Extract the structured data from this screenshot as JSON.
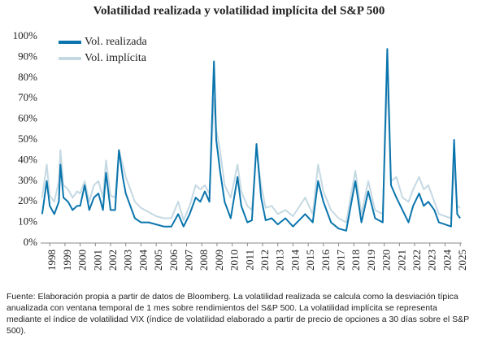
{
  "chart_data": {
    "type": "line",
    "title": "Volatilidad realizada y volatilidad implícita del S&P 500",
    "note": "Fuente: Elaboración propia a partir de datos de Bloomberg. La volatilidad realizada se calcula como la desviación típica anualizada con ventana temporal de 1 mes sobre rendimientos del S&P 500. La volatilidad implícita se representa mediante el índice de volatilidad VIX (índice de volatilidad elaborado a partir de precio de opciones a 30 días sobre el S&P 500).",
    "x": [
      1997.5,
      1997.8,
      1998.0,
      1998.3,
      1998.6,
      1998.7,
      1998.9,
      1999.2,
      1999.5,
      1999.8,
      2000.0,
      2000.3,
      2000.6,
      2000.9,
      2001.2,
      2001.5,
      2001.7,
      2002.0,
      2002.3,
      2002.55,
      2002.8,
      2003.0,
      2003.3,
      2003.6,
      2004.0,
      2004.5,
      2005.0,
      2005.5,
      2006.0,
      2006.45,
      2006.8,
      2007.2,
      2007.6,
      2007.9,
      2008.2,
      2008.5,
      2008.8,
      2008.95,
      2009.2,
      2009.5,
      2009.9,
      2010.35,
      2010.6,
      2011.0,
      2011.3,
      2011.6,
      2011.9,
      2012.2,
      2012.6,
      2013.0,
      2013.5,
      2014.0,
      2014.8,
      2015.3,
      2015.65,
      2016.0,
      2016.5,
      2017.0,
      2017.5,
      2018.1,
      2018.5,
      2018.95,
      2019.4,
      2019.9,
      2020.2,
      2020.45,
      2020.8,
      2021.2,
      2021.6,
      2021.9,
      2022.3,
      2022.6,
      2022.9,
      2023.3,
      2023.6,
      2024.0,
      2024.4,
      2024.6,
      2024.8,
      2025.0
    ],
    "series": [
      {
        "name": "Vol. realizada",
        "color": "#0a75ad",
        "values": [
          14,
          30,
          18,
          14,
          20,
          38,
          22,
          20,
          16,
          18,
          18,
          28,
          16,
          22,
          24,
          16,
          34,
          16,
          16,
          45,
          32,
          24,
          18,
          12,
          10,
          10,
          9,
          8,
          8,
          14,
          8,
          14,
          22,
          20,
          25,
          20,
          88,
          50,
          35,
          20,
          12,
          32,
          18,
          10,
          11,
          48,
          22,
          11,
          12,
          9,
          12,
          8,
          14,
          10,
          30,
          20,
          10,
          7,
          6,
          30,
          10,
          25,
          12,
          10,
          94,
          28,
          22,
          16,
          10,
          18,
          24,
          18,
          20,
          16,
          10,
          9,
          8,
          50,
          14,
          12
        ]
      },
      {
        "name": "Vol. implícita",
        "color": "#c5d9e3",
        "values": [
          22,
          38,
          23,
          20,
          30,
          45,
          28,
          26,
          22,
          25,
          24,
          30,
          20,
          28,
          30,
          22,
          40,
          23,
          22,
          45,
          38,
          32,
          26,
          20,
          17,
          15,
          13,
          12,
          12,
          20,
          11,
          18,
          28,
          26,
          28,
          24,
          70,
          55,
          45,
          28,
          22,
          38,
          25,
          18,
          16,
          45,
          28,
          17,
          18,
          14,
          16,
          13,
          22,
          14,
          38,
          25,
          16,
          12,
          10,
          35,
          14,
          30,
          16,
          14,
          80,
          30,
          32,
          22,
          20,
          26,
          32,
          26,
          28,
          20,
          14,
          13,
          12,
          38,
          18,
          17
        ]
      }
    ],
    "xlim": [
      1997.4,
      2025.1
    ],
    "xticks": [
      1998,
      1999,
      2000,
      2001,
      2002,
      2003,
      2004,
      2005,
      2006,
      2007,
      2008,
      2009,
      2010,
      2011,
      2012,
      2013,
      2014,
      2015,
      2016,
      2017,
      2018,
      2019,
      2020,
      2021,
      2022,
      2023,
      2024,
      2025
    ],
    "ylim": [
      0,
      100
    ],
    "yticks": [
      {
        "value": 0,
        "label": "0%"
      },
      {
        "value": 10,
        "label": "10%"
      },
      {
        "value": 20,
        "label": "20%"
      },
      {
        "value": 30,
        "label": "30%"
      },
      {
        "value": 40,
        "label": "40%"
      },
      {
        "value": 50,
        "label": "50%"
      },
      {
        "value": 60,
        "label": "60%"
      },
      {
        "value": 70,
        "label": "70%"
      },
      {
        "value": 80,
        "label": "80%"
      },
      {
        "value": 90,
        "label": "90%"
      },
      {
        "value": 100,
        "label": "100%"
      }
    ],
    "legend": "top-left"
  }
}
